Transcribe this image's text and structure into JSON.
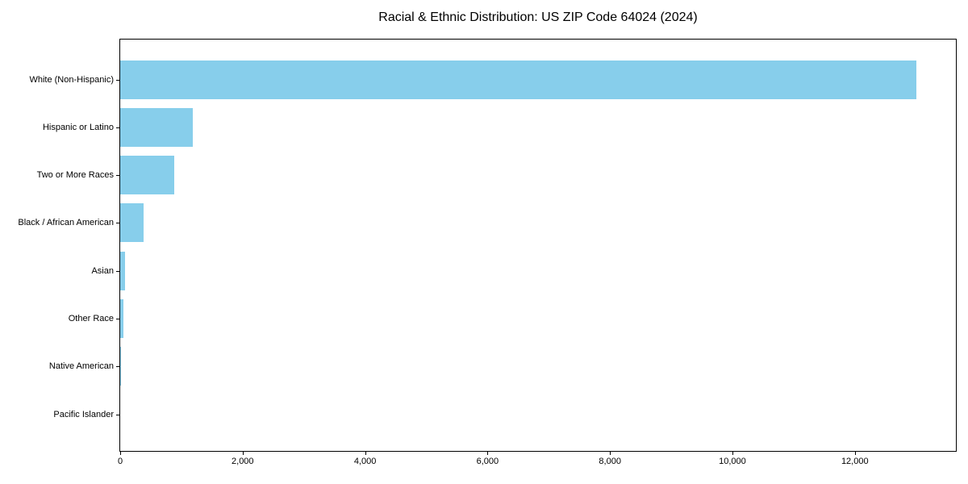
{
  "chart_data": {
    "type": "bar",
    "orientation": "horizontal",
    "title": "Racial & Ethnic Distribution: US ZIP Code 64024 (2024)",
    "categories": [
      "White (Non-Hispanic)",
      "Hispanic or Latino",
      "Two or More Races",
      "Black / African American",
      "Asian",
      "Other Race",
      "Native American",
      "Pacific Islander"
    ],
    "values": [
      13000,
      1190,
      885,
      385,
      80,
      55,
      15,
      0
    ],
    "xlabel": "",
    "ylabel": "",
    "xlim": [
      0,
      13650
    ],
    "x_tick_values": [
      0,
      2000,
      4000,
      6000,
      8000,
      10000,
      12000
    ],
    "x_tick_labels": [
      "0",
      "2,000",
      "4,000",
      "6,000",
      "8,000",
      "10,000",
      "12,000"
    ],
    "grid": false,
    "legend": null,
    "bar_color": "#87CEEB",
    "axis_color": "#000000",
    "text_color": "#000000",
    "background_color": "#FFFFFF"
  }
}
